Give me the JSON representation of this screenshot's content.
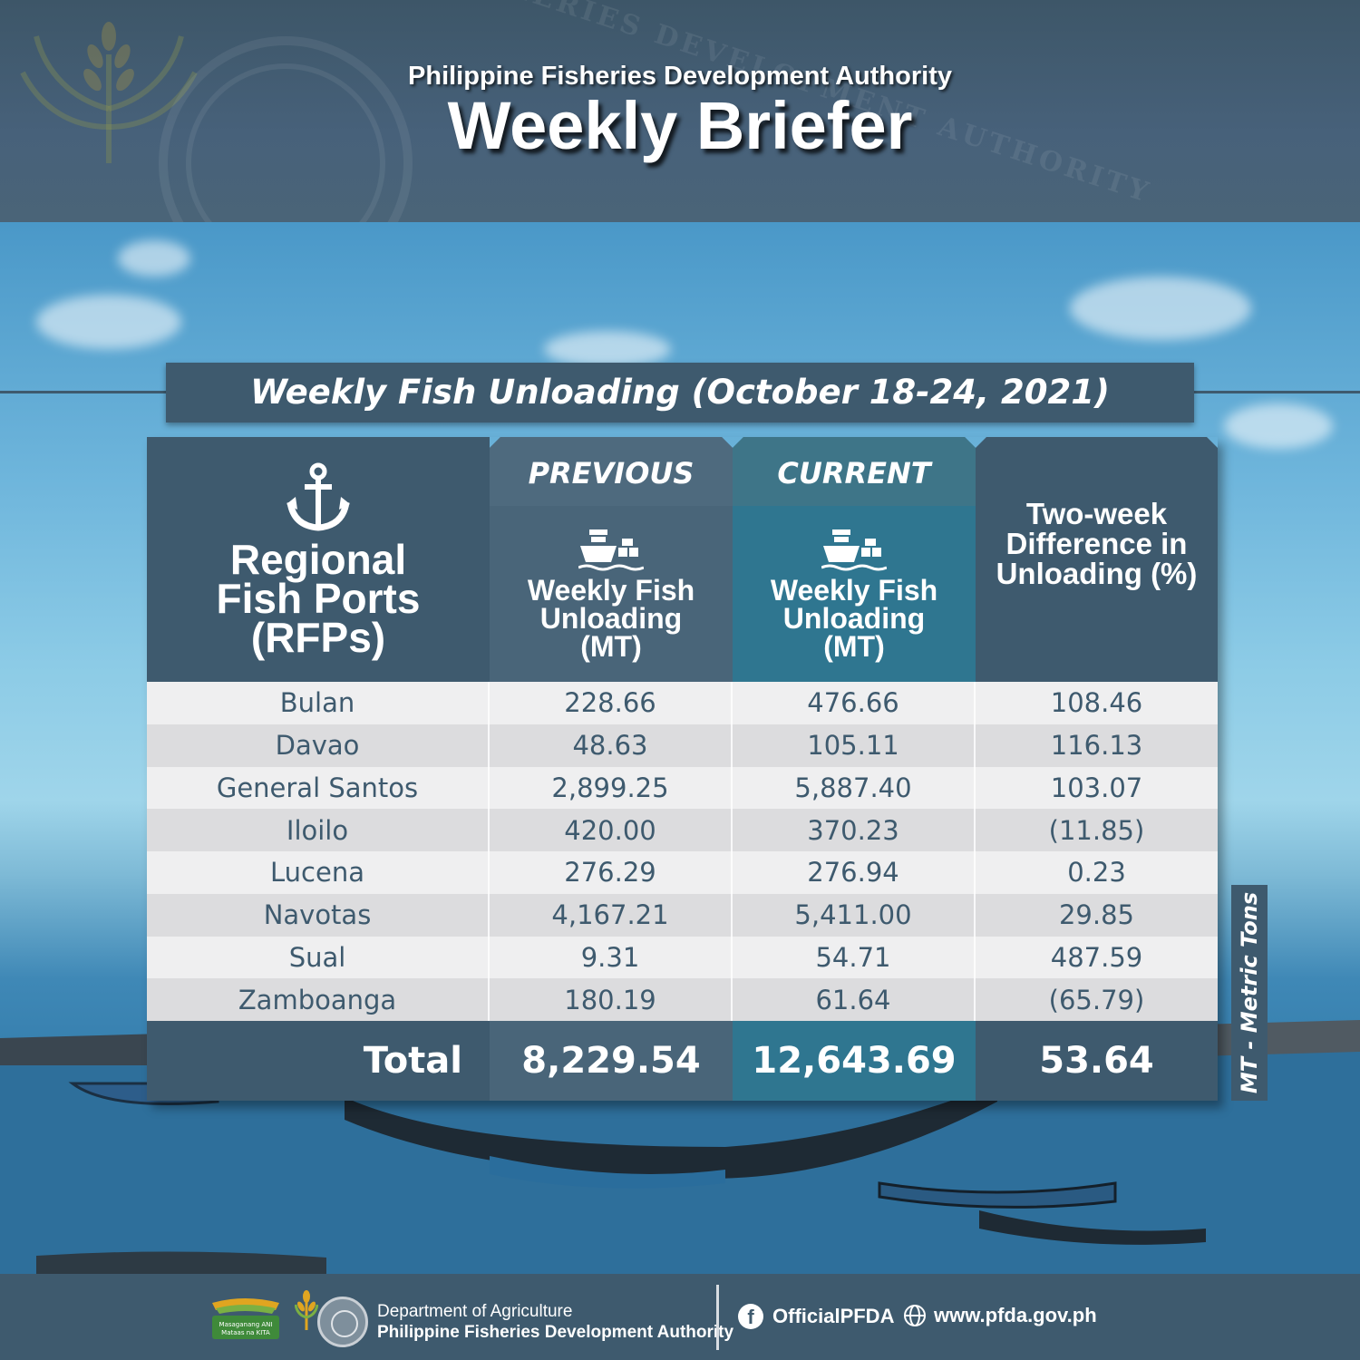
{
  "header": {
    "org": "Philippine Fisheries Development Authority",
    "title": "Weekly Briefer",
    "seal_text": "PHILIPPINE FISHERIES DEVELOPMENT AUTHORITY"
  },
  "table_title": "Weekly Fish Unloading (October 18-24, 2021)",
  "columns": {
    "rfp": "Regional Fish Ports (RFPs)",
    "previous_label": "PREVIOUS",
    "current_label": "CURRENT",
    "unloading_label": "Weekly Fish Unloading (MT)",
    "diff": "Two-week Difference in Unloading (%)"
  },
  "rows": [
    {
      "port": "Bulan",
      "previous": "228.66",
      "current": "476.66",
      "diff": "108.46"
    },
    {
      "port": "Davao",
      "previous": "48.63",
      "current": "105.11",
      "diff": "116.13"
    },
    {
      "port": "General Santos",
      "previous": "2,899.25",
      "current": "5,887.40",
      "diff": "103.07"
    },
    {
      "port": "Iloilo",
      "previous": "420.00",
      "current": "370.23",
      "diff": "(11.85)"
    },
    {
      "port": "Lucena",
      "previous": "276.29",
      "current": "276.94",
      "diff": "0.23"
    },
    {
      "port": "Navotas",
      "previous": "4,167.21",
      "current": "5,411.00",
      "diff": "29.85"
    },
    {
      "port": "Sual",
      "previous": "9.31",
      "current": "54.71",
      "diff": "487.59"
    },
    {
      "port": "Zamboanga",
      "previous": "180.19",
      "current": "61.64",
      "diff": "(65.79)"
    }
  ],
  "total": {
    "label": "Total",
    "previous": "8,229.54",
    "current": "12,643.69",
    "diff": "53.64"
  },
  "side_note": "MT - Metric Tons",
  "footer": {
    "dept_line1": "Department of Agriculture",
    "dept_line2": "Philippine Fisheries Development Authority",
    "facebook": "OfficialPFDA",
    "website": "www.pfda.gov.ph",
    "logo_text": "Masaganang ANI Mataas na KITA"
  },
  "colors": {
    "slate": "#3e5a6e",
    "teal": "#2f7690",
    "row_light": "#efeff0",
    "row_dark": "#dcdcde"
  },
  "icons": [
    "anchor-icon",
    "cargo-ship-icon",
    "facebook-icon",
    "globe-icon"
  ]
}
